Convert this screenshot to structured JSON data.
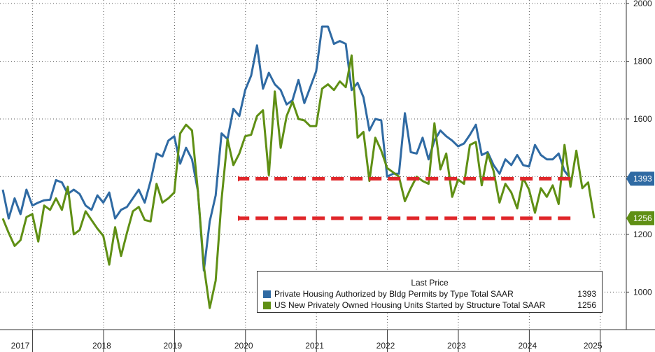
{
  "chart_data": {
    "type": "line",
    "title": "",
    "xlabel": "",
    "ylabel": "",
    "ylim": [
      870,
      2000
    ],
    "y_ticks": [
      1000,
      1200,
      1400,
      1600,
      1800,
      2000
    ],
    "y_tick_labels": [
      "1000",
      "1200",
      "1400",
      "1600",
      "1800",
      "2000"
    ],
    "x_start": 2017.0,
    "x_end": 2025.58,
    "year_labels": [
      "2017",
      "2018",
      "2019",
      "2020",
      "2021",
      "2022",
      "2023",
      "2024",
      "2025"
    ],
    "year_positions": [
      2017,
      2018,
      2019,
      2020,
      2021,
      2022,
      2023,
      2024,
      2025
    ],
    "grid": true,
    "legend_title": "Last Price",
    "legend_position": "bottom-right",
    "series": [
      {
        "name": "Private Housing Authorized by Bldg Permits by Type Total SAAR",
        "color": "#2f6aa3",
        "last_value": "1393",
        "x_start": 2017.0,
        "step": 0.083333,
        "values": [
          1355,
          1255,
          1325,
          1270,
          1355,
          1300,
          1310,
          1318,
          1320,
          1388,
          1380,
          1340,
          1355,
          1340,
          1300,
          1285,
          1335,
          1310,
          1345,
          1255,
          1285,
          1295,
          1325,
          1355,
          1310,
          1385,
          1480,
          1470,
          1525,
          1540,
          1445,
          1500,
          1460,
          1350,
          1075,
          1245,
          1335,
          1550,
          1530,
          1635,
          1610,
          1700,
          1750,
          1855,
          1705,
          1760,
          1720,
          1700,
          1650,
          1665,
          1735,
          1655,
          1710,
          1765,
          1920,
          1920,
          1860,
          1870,
          1860,
          1700,
          1725,
          1675,
          1560,
          1600,
          1595,
          1400,
          1410,
          1410,
          1620,
          1485,
          1480,
          1535,
          1460,
          1525,
          1560,
          1540,
          1525,
          1505,
          1515,
          1545,
          1580,
          1475,
          1485,
          1440,
          1410,
          1460,
          1440,
          1475,
          1440,
          1435,
          1510,
          1475,
          1460,
          1460,
          1480,
          1420,
          1393
        ]
      },
      {
        "name": "US New Privately Owned Housing Units Started by Structure Total SAAR",
        "color": "#5f8f14",
        "last_value": "1256",
        "x_start": 2017.0,
        "step": 0.083333,
        "values": [
          1255,
          1205,
          1160,
          1180,
          1260,
          1270,
          1175,
          1300,
          1285,
          1325,
          1285,
          1365,
          1200,
          1215,
          1280,
          1250,
          1220,
          1195,
          1095,
          1225,
          1125,
          1205,
          1280,
          1295,
          1250,
          1245,
          1375,
          1310,
          1325,
          1345,
          1550,
          1580,
          1560,
          1350,
          1090,
          945,
          1040,
          1320,
          1530,
          1440,
          1480,
          1540,
          1545,
          1610,
          1630,
          1405,
          1695,
          1500,
          1610,
          1660,
          1600,
          1595,
          1575,
          1575,
          1705,
          1720,
          1700,
          1730,
          1710,
          1820,
          1535,
          1555,
          1385,
          1535,
          1490,
          1430,
          1415,
          1400,
          1315,
          1360,
          1400,
          1385,
          1375,
          1585,
          1425,
          1480,
          1330,
          1390,
          1375,
          1510,
          1520,
          1370,
          1480,
          1420,
          1310,
          1375,
          1345,
          1290,
          1395,
          1355,
          1275,
          1360,
          1330,
          1370,
          1305,
          1510,
          1365,
          1490,
          1360,
          1380,
          1256
        ]
      }
    ],
    "annotations": [
      {
        "type": "dashed-arrow",
        "y": 1393,
        "color": "#e0262a"
      },
      {
        "type": "dashed-arrow",
        "y": 1256,
        "color": "#e0262a"
      }
    ]
  }
}
